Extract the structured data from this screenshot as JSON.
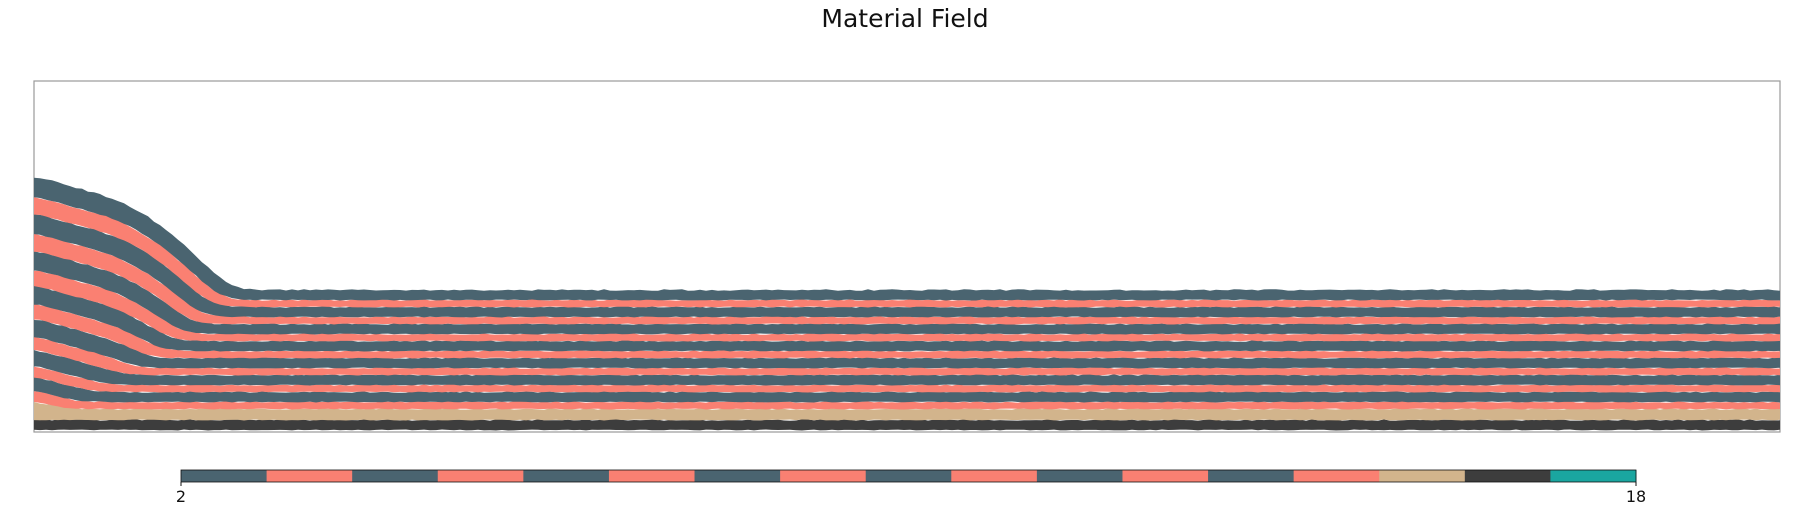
{
  "chart_data": {
    "type": "heatmap",
    "title": "Material Field",
    "xlabel": "",
    "ylabel": "",
    "colorbar": {
      "min": 2,
      "max": 18,
      "tick_labels": [
        "2",
        "18"
      ],
      "segments": [
        {
          "value": 2,
          "color": "#4a6470"
        },
        {
          "value": 3,
          "color": "#fa8072"
        },
        {
          "value": 4,
          "color": "#4a6470"
        },
        {
          "value": 5,
          "color": "#fa8072"
        },
        {
          "value": 6,
          "color": "#4a6470"
        },
        {
          "value": 7,
          "color": "#fa8072"
        },
        {
          "value": 8,
          "color": "#4a6470"
        },
        {
          "value": 9,
          "color": "#fa8072"
        },
        {
          "value": 10,
          "color": "#4a6470"
        },
        {
          "value": 11,
          "color": "#fa8072"
        },
        {
          "value": 12,
          "color": "#4a6470"
        },
        {
          "value": 13,
          "color": "#fa8072"
        },
        {
          "value": 14,
          "color": "#4a6470"
        },
        {
          "value": 15,
          "color": "#fa8072"
        },
        {
          "value": 16,
          "color": "#d2b48c"
        },
        {
          "value": 17,
          "color": "#3d3d3d"
        },
        {
          "value": 18,
          "color": "#1aa6a0"
        }
      ]
    },
    "layers": [
      {
        "material": 17,
        "color": "#3d3d3d"
      },
      {
        "material": 16,
        "color": "#d2b48c"
      },
      {
        "material": 15,
        "color": "#fa8072"
      },
      {
        "material": 14,
        "color": "#4a6470"
      },
      {
        "material": 13,
        "color": "#fa8072"
      },
      {
        "material": 12,
        "color": "#4a6470"
      },
      {
        "material": 11,
        "color": "#fa8072"
      },
      {
        "material": 10,
        "color": "#4a6470"
      },
      {
        "material": 9,
        "color": "#fa8072"
      },
      {
        "material": 8,
        "color": "#4a6470"
      },
      {
        "material": 7,
        "color": "#fa8072"
      },
      {
        "material": 6,
        "color": "#4a6470"
      },
      {
        "material": 5,
        "color": "#fa8072"
      },
      {
        "material": 4,
        "color": "#4a6470"
      },
      {
        "material": 3,
        "color": "#fa8072"
      },
      {
        "material": 2,
        "color": "#4a6470"
      }
    ],
    "frame_color": "#9a9a9a"
  }
}
